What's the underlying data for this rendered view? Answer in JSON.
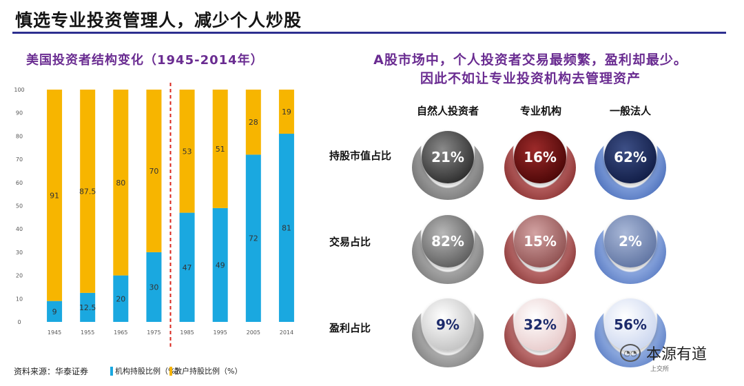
{
  "header": {
    "title": "慎选专业投资管理人，减少个人炒股",
    "accent": "#2d2f8f"
  },
  "left": {
    "title": "美国投资者结构变化（1945-2014年）",
    "source": "资料来源：华泰证券",
    "legend": {
      "institutional": "机构持股比例（%）",
      "retail": "散户持股比例（%）"
    }
  },
  "chart_data": {
    "type": "bar",
    "stacked": true,
    "categories": [
      "1945",
      "1955",
      "1965",
      "1975",
      "1985",
      "1995",
      "2005",
      "2014"
    ],
    "series": [
      {
        "name": "机构持股比例（%）",
        "color": "#1aa8e0",
        "values": [
          9,
          12.5,
          20,
          30,
          47,
          49,
          72,
          81
        ]
      },
      {
        "name": "散户持股比例（%）",
        "color": "#f7b500",
        "values": [
          91,
          87.5,
          80,
          70,
          53,
          51,
          28,
          19
        ]
      }
    ],
    "ylim": [
      0,
      100
    ],
    "yticks": [
      0,
      10,
      20,
      30,
      40,
      50,
      60,
      70,
      80,
      90,
      100
    ],
    "title": "美国投资者结构变化（1945-2014年）",
    "xlabel": "",
    "ylabel": "",
    "divider_after_category": "1975"
  },
  "right": {
    "headline_1": "A股市场中，个人投资者交易最频繁，盈利却最少。",
    "headline_2": "因此不如让专业投资机构去管理资产",
    "columns": [
      "自然人投资者",
      "专业机构",
      "一般法人"
    ],
    "rows": [
      {
        "label": "持股市值占比",
        "values": [
          "21%",
          "16%",
          "62%"
        ]
      },
      {
        "label": "交易占比",
        "values": [
          "82%",
          "15%",
          "2%"
        ]
      },
      {
        "label": "盈利占比",
        "values": [
          "9%",
          "32%",
          "56%"
        ]
      }
    ]
  },
  "watermark": {
    "text": "本源有道",
    "small": "上交所"
  }
}
